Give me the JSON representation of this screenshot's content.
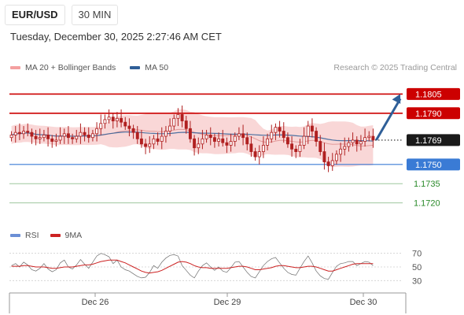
{
  "header": {
    "symbol": "EUR/USD",
    "timeframe": "30 MIN",
    "datetime": "Tuesday, December 30, 2025 2:27:46 AM CET"
  },
  "legend": {
    "bollinger": "MA 20 + Bollinger Bands",
    "ma50": "MA 50",
    "rsi": "RSI",
    "rsi_ma": "9MA"
  },
  "credit": "Research © 2025 Trading Central",
  "colors": {
    "bollinger_fill": "#f6c6c6",
    "bollinger_swatch": "#f4a0a0",
    "ma50": "#2f5f98",
    "resistance": "#cc0000",
    "support": "#3a7bd5",
    "target": "#2a8a2a",
    "candle": "#b02020",
    "rsi": "#6b8fd6",
    "rsi_ma": "#cc2222"
  },
  "chart_data": {
    "type": "candlestick",
    "price_range": [
      1.1705,
      1.182
    ],
    "x_tick_labels": [
      "Dec 26",
      "Dec 29",
      "Dec 30"
    ],
    "levels": [
      {
        "label": "1.1805",
        "value": 1.1805,
        "kind": "resistance"
      },
      {
        "label": "1.1790",
        "value": 1.179,
        "kind": "resistance"
      },
      {
        "label": "1.1769",
        "value": 1.1769,
        "kind": "current"
      },
      {
        "label": "1.1750",
        "value": 1.175,
        "kind": "support"
      },
      {
        "label": "1.1735",
        "value": 1.1735,
        "kind": "target"
      },
      {
        "label": "1.1720",
        "value": 1.172,
        "kind": "target"
      }
    ],
    "arrow_target": 1.1805,
    "closes": [
      1.1773,
      1.1775,
      1.1774,
      1.1776,
      1.1775,
      1.1772,
      1.177,
      1.1771,
      1.1773,
      1.177,
      1.1768,
      1.1769,
      1.1772,
      1.1774,
      1.1771,
      1.177,
      1.1772,
      1.1775,
      1.1773,
      1.1771,
      1.1774,
      1.1778,
      1.1782,
      1.1785,
      1.1787,
      1.1784,
      1.1786,
      1.1783,
      1.178,
      1.1778,
      1.1775,
      1.177,
      1.1766,
      1.1764,
      1.1766,
      1.177,
      1.1768,
      1.1772,
      1.1776,
      1.178,
      1.1786,
      1.1789,
      1.1784,
      1.1778,
      1.177,
      1.1763,
      1.1766,
      1.177,
      1.1773,
      1.1771,
      1.1768,
      1.177,
      1.1767,
      1.1765,
      1.1768,
      1.1772,
      1.1774,
      1.1771,
      1.1766,
      1.176,
      1.1756,
      1.176,
      1.1765,
      1.177,
      1.1775,
      1.1779,
      1.1776,
      1.1771,
      1.1766,
      1.1762,
      1.176,
      1.1765,
      1.1772,
      1.178,
      1.1776,
      1.1768,
      1.176,
      1.1752,
      1.1749,
      1.1753,
      1.1758,
      1.1762,
      1.1764,
      1.1767,
      1.1769,
      1.1766,
      1.1768,
      1.1771,
      1.1772,
      1.1769
    ],
    "rsi_axis_labels": [
      "70",
      "50",
      "30"
    ],
    "rsi_range": [
      20,
      80
    ],
    "rsi": [
      52,
      55,
      50,
      57,
      53,
      46,
      44,
      48,
      55,
      47,
      43,
      46,
      56,
      60,
      50,
      47,
      53,
      61,
      54,
      48,
      57,
      66,
      70,
      68,
      65,
      55,
      60,
      50,
      46,
      44,
      40,
      36,
      34,
      35,
      42,
      52,
      48,
      57,
      63,
      67,
      68,
      66,
      52,
      45,
      38,
      34,
      44,
      52,
      56,
      50,
      45,
      50,
      44,
      42,
      49,
      57,
      58,
      50,
      42,
      36,
      34,
      43,
      52,
      58,
      62,
      64,
      56,
      48,
      42,
      39,
      38,
      48,
      58,
      66,
      56,
      44,
      37,
      33,
      32,
      42,
      51,
      55,
      56,
      58,
      58,
      52,
      55,
      58,
      57,
      52
    ],
    "rsi_ma": [
      51,
      51,
      51,
      52,
      52,
      51,
      50,
      50,
      50,
      49,
      48,
      48,
      49,
      50,
      50,
      50,
      51,
      52,
      53,
      53,
      54,
      56,
      58,
      59,
      60,
      60,
      60,
      58,
      56,
      53,
      50,
      47,
      44,
      42,
      41,
      42,
      43,
      45,
      48,
      51,
      54,
      57,
      58,
      57,
      55,
      52,
      50,
      49,
      49,
      48,
      48,
      48,
      48,
      48,
      49,
      50,
      51,
      51,
      50,
      48,
      46,
      46,
      47,
      48,
      49,
      51,
      52,
      52,
      51,
      50,
      49,
      49,
      50,
      51,
      51,
      50,
      48,
      46,
      44,
      44,
      46,
      48,
      50,
      52,
      54,
      55,
      55,
      55,
      55,
      55
    ]
  }
}
